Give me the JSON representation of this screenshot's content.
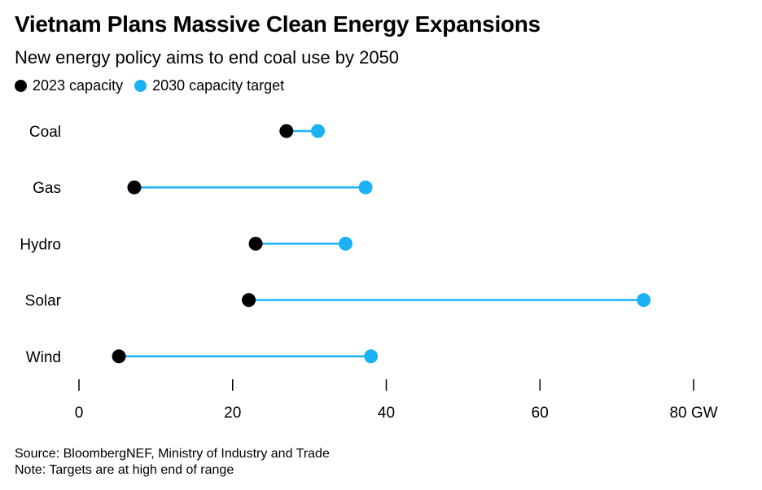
{
  "title": "Vietnam Plans Massive Clean Energy Expansions",
  "subtitle": "New energy policy aims to end coal use by 2050",
  "legend": [
    {
      "label": "2023 capacity",
      "color": "#000000"
    },
    {
      "label": "2030 capacity target",
      "color": "#1ab2f5"
    }
  ],
  "chart_data": {
    "type": "dumbbell",
    "categories": [
      "Coal",
      "Gas",
      "Hydro",
      "Solar",
      "Wind"
    ],
    "series": [
      {
        "name": "2023 capacity",
        "color": "#000000",
        "values": [
          27,
          7.2,
          23,
          22.1,
          5.2
        ]
      },
      {
        "name": "2030 capacity target",
        "color": "#1ab2f5",
        "values": [
          31.1,
          37.3,
          34.7,
          73.5,
          38
        ]
      }
    ],
    "x_ticks": [
      0,
      20,
      40,
      60,
      80
    ],
    "x_tick_labels": [
      "0",
      "20",
      "40",
      "60",
      "80 GW"
    ],
    "xlim": [
      0,
      80
    ],
    "connector_color": "#1ab2f5",
    "grid": false
  },
  "footer": {
    "source": "Source: BloombergNEF, Ministry of Industry and Trade",
    "note": "Note: Targets are at high end of range"
  }
}
